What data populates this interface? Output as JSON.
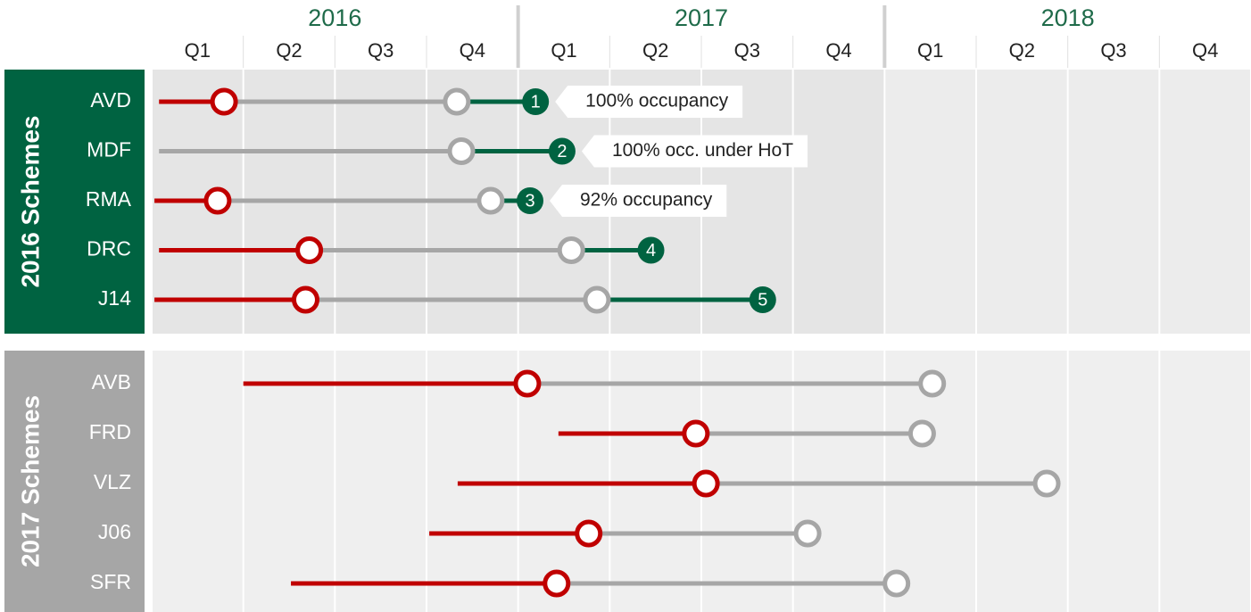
{
  "chart_data": {
    "type": "timeline",
    "years": [
      "2016",
      "2017",
      "2018"
    ],
    "quarters": [
      "Q1",
      "Q2",
      "Q3",
      "Q4",
      "Q1",
      "Q2",
      "Q3",
      "Q4",
      "Q1",
      "Q2",
      "Q3",
      "Q4"
    ],
    "xlim": [
      0,
      12
    ],
    "colors": {
      "before": "#c00000",
      "after": "#a6a6a6",
      "done": "#006341"
    },
    "groups": [
      {
        "name": "2016 Schemes",
        "color": "#006341",
        "schemes": [
          {
            "name": "AVD",
            "start": 0.08,
            "red": 0.79,
            "grey": 3.33,
            "end": 4.19,
            "label": 1,
            "annotation": "100% occupancy"
          },
          {
            "name": "MDF",
            "start": 0.08,
            "red": null,
            "grey": 3.38,
            "end": 4.48,
            "label": 2,
            "annotation": "100% occ. under HoT"
          },
          {
            "name": "RMA",
            "start": 0.03,
            "red": 0.72,
            "grey": 3.7,
            "end": 4.13,
            "label": 3,
            "annotation": "92% occupancy"
          },
          {
            "name": "DRC",
            "start": 0.08,
            "red": 1.72,
            "grey": 4.58,
            "end": 5.45,
            "label": 4
          },
          {
            "name": "J14",
            "start": 0.03,
            "red": 1.68,
            "grey": 4.86,
            "end": 6.67,
            "label": 5
          }
        ]
      },
      {
        "name": "2017 Schemes",
        "color": "#a6a6a6",
        "schemes": [
          {
            "name": "AVB",
            "start": 1.0,
            "red": 4.1,
            "grey": 8.52
          },
          {
            "name": "FRD",
            "start": 4.44,
            "red": 5.94,
            "grey": 8.41
          },
          {
            "name": "VLZ",
            "start": 3.34,
            "red": 6.05,
            "grey": 9.77
          },
          {
            "name": "J06",
            "start": 3.03,
            "red": 4.77,
            "grey": 7.16
          },
          {
            "name": "SFR",
            "start": 1.52,
            "red": 4.42,
            "grey": 8.13
          }
        ]
      }
    ]
  }
}
